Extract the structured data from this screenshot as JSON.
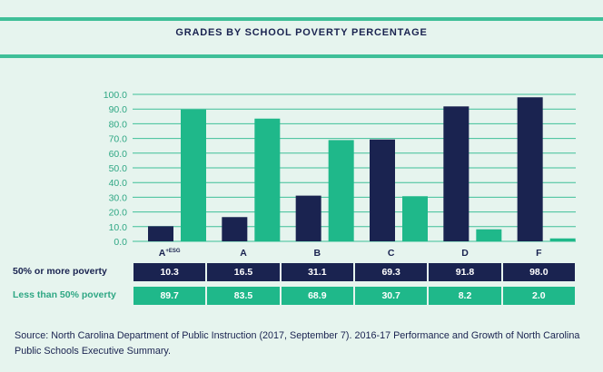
{
  "colors": {
    "navy": "#1a2350",
    "teal": "#1fb88a",
    "background": "#e6f4ee",
    "accent": "#3fbf98"
  },
  "chart_data": {
    "type": "bar",
    "title": "GRADES BY SCHOOL POVERTY PERCENTAGE",
    "categories": [
      "A+ESG",
      "A",
      "B",
      "C",
      "D",
      "F"
    ],
    "series": [
      {
        "name": "50% or more poverty",
        "color": "#1a2350",
        "values": [
          10.3,
          16.5,
          31.1,
          69.3,
          91.8,
          98.0
        ]
      },
      {
        "name": "Less than 50% poverty",
        "color": "#1fb88a",
        "values": [
          89.7,
          83.5,
          68.9,
          30.7,
          8.2,
          2.0
        ]
      }
    ],
    "ylim": [
      0,
      100
    ],
    "yticks": [
      "0.0",
      "10.0",
      "20.0",
      "30.0",
      "40.0",
      "50.0",
      "60.0",
      "70.0",
      "80.0",
      "90.0",
      "100.0"
    ],
    "grid": true,
    "table": {
      "row1_label": "50% or more poverty",
      "row1_values": [
        "10.3",
        "16.5",
        "31.1",
        "69.3",
        "91.8",
        "98.0"
      ],
      "row2_label": "Less than 50% poverty",
      "row2_values": [
        "89.7",
        "83.5",
        "68.9",
        "30.7",
        "8.2",
        "2.0"
      ]
    }
  },
  "source": "Source: North Carolina Department of Public Instruction (2017, September 7). 2016-17 Performance and Growth of North Carolina Public Schools Executive Summary."
}
